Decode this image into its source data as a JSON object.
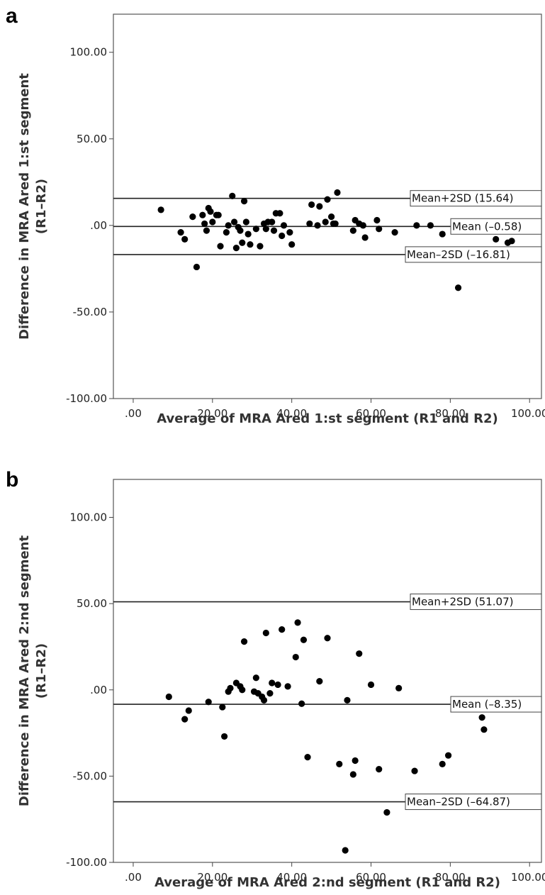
{
  "chart_data": [
    {
      "type": "scatter",
      "panel_label": "a",
      "xlabel": "Average of MRA Ared 1:st segment (R1 and R2)",
      "ylabel_line1": "Difference in MRA Ared 1:st segment",
      "ylabel_line2": "(R1–R2)",
      "xlim": [
        -5,
        103
      ],
      "ylim": [
        -100,
        122
      ],
      "x_ticks": [
        0,
        20,
        40,
        60,
        80,
        100
      ],
      "x_tick_labels": [
        ".00",
        "20.00",
        "40.00",
        "60.00",
        "80.00",
        "100.00"
      ],
      "y_ticks": [
        100,
        50,
        0,
        -50,
        -100
      ],
      "y_tick_labels": [
        "100.00",
        "50.00",
        ".00",
        "-50.00",
        "-100.00"
      ],
      "reference_lines": [
        {
          "value": 15.64,
          "label": "Mean+2SD (15.64)"
        },
        {
          "value": -0.58,
          "label": "Mean (–0.58)"
        },
        {
          "value": -16.81,
          "label": "Mean–2SD (–16.81)"
        }
      ],
      "points": [
        [
          7,
          9
        ],
        [
          12,
          -4
        ],
        [
          13,
          -8
        ],
        [
          15,
          5
        ],
        [
          16,
          -24
        ],
        [
          17.5,
          6
        ],
        [
          18,
          1
        ],
        [
          18.5,
          -3
        ],
        [
          19,
          10
        ],
        [
          19.5,
          8
        ],
        [
          20,
          2
        ],
        [
          21,
          6
        ],
        [
          21.5,
          6
        ],
        [
          22,
          -12
        ],
        [
          23.5,
          -4
        ],
        [
          24,
          0
        ],
        [
          25,
          17
        ],
        [
          25.5,
          2
        ],
        [
          26,
          -13
        ],
        [
          26.5,
          -1
        ],
        [
          27,
          -3
        ],
        [
          27.5,
          -10
        ],
        [
          28,
          14
        ],
        [
          28.5,
          2
        ],
        [
          29,
          -5
        ],
        [
          29.5,
          -11
        ],
        [
          31,
          -2
        ],
        [
          32,
          -12
        ],
        [
          33,
          1
        ],
        [
          33.5,
          -2
        ],
        [
          34,
          2
        ],
        [
          35,
          2
        ],
        [
          35.5,
          -3
        ],
        [
          36,
          7
        ],
        [
          37,
          7
        ],
        [
          37.5,
          -6
        ],
        [
          38,
          0
        ],
        [
          39.5,
          -4
        ],
        [
          40,
          -11
        ],
        [
          44.5,
          1
        ],
        [
          45,
          12
        ],
        [
          46.5,
          0
        ],
        [
          47,
          11
        ],
        [
          48.5,
          2
        ],
        [
          49,
          15
        ],
        [
          50,
          5
        ],
        [
          50.5,
          1
        ],
        [
          51,
          1
        ],
        [
          51.5,
          19
        ],
        [
          55.5,
          -3
        ],
        [
          56,
          3
        ],
        [
          57,
          1
        ],
        [
          58,
          0
        ],
        [
          58.5,
          -7
        ],
        [
          61.5,
          3
        ],
        [
          62,
          -2
        ],
        [
          66,
          -4
        ],
        [
          71.5,
          0
        ],
        [
          75,
          0
        ],
        [
          78,
          -5
        ],
        [
          82,
          -36
        ],
        [
          91.5,
          -8
        ],
        [
          94.5,
          -10
        ],
        [
          95.5,
          -9
        ]
      ]
    },
    {
      "type": "scatter",
      "panel_label": "b",
      "xlabel": "Average of MRA Ared 2:nd segment (R1 and R2)",
      "ylabel_line1": "Difference in MRA Ared 2:nd segment",
      "ylabel_line2": "(R1–R2)",
      "xlim": [
        -5,
        103
      ],
      "ylim": [
        -100,
        122
      ],
      "x_ticks": [
        0,
        20,
        40,
        60,
        80,
        100
      ],
      "x_tick_labels": [
        ".00",
        "20.00",
        "40.00",
        "60.00",
        "80.00",
        "100.00"
      ],
      "y_ticks": [
        100,
        50,
        0,
        -50,
        -100
      ],
      "y_tick_labels": [
        "100.00",
        "50.00",
        ".00",
        "-50.00",
        "-100.00"
      ],
      "reference_lines": [
        {
          "value": 51.07,
          "label": "Mean+2SD (51.07)"
        },
        {
          "value": -8.35,
          "label": "Mean (–8.35)"
        },
        {
          "value": -64.87,
          "label": "Mean–2SD (–64.87)"
        }
      ],
      "points": [
        [
          9,
          -4
        ],
        [
          13,
          -17
        ],
        [
          14,
          -12
        ],
        [
          19,
          -7
        ],
        [
          22.5,
          -10
        ],
        [
          23,
          -27
        ],
        [
          24,
          -1
        ],
        [
          24.5,
          1
        ],
        [
          26,
          4
        ],
        [
          27,
          2
        ],
        [
          27.5,
          0
        ],
        [
          28,
          28
        ],
        [
          30.5,
          -1
        ],
        [
          31,
          7
        ],
        [
          31.5,
          -2
        ],
        [
          32.5,
          -4
        ],
        [
          33,
          -6
        ],
        [
          33.5,
          33
        ],
        [
          34.5,
          -2
        ],
        [
          35,
          4
        ],
        [
          36.5,
          3
        ],
        [
          37.5,
          35
        ],
        [
          39,
          2
        ],
        [
          41,
          19
        ],
        [
          41.5,
          39
        ],
        [
          42.5,
          -8
        ],
        [
          43,
          29
        ],
        [
          44,
          -39
        ],
        [
          47,
          5
        ],
        [
          49,
          30
        ],
        [
          52,
          -43
        ],
        [
          53.5,
          -93
        ],
        [
          54,
          -6
        ],
        [
          55.5,
          -49
        ],
        [
          56,
          -41
        ],
        [
          57,
          21
        ],
        [
          60,
          3
        ],
        [
          62,
          -46
        ],
        [
          64,
          -71
        ],
        [
          67,
          1
        ],
        [
          71,
          -47
        ],
        [
          78,
          -43
        ],
        [
          79.5,
          -38
        ],
        [
          88,
          -16
        ],
        [
          88.5,
          -23
        ]
      ]
    }
  ]
}
